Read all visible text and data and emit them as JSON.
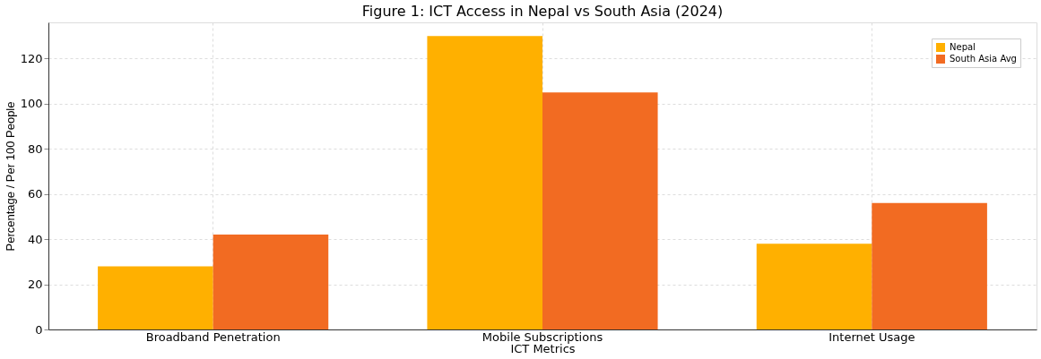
{
  "chart_data": {
    "type": "bar",
    "title": "Figure 1: ICT Access in Nepal vs South Asia (2024)",
    "xlabel": "ICT Metrics",
    "ylabel": "Percentage / Per 100 People",
    "categories": [
      "Broadband Penetration",
      "Mobile Subscriptions",
      "Internet Usage"
    ],
    "series": [
      {
        "name": "Nepal",
        "color": "#ffb000",
        "values": [
          28,
          130,
          38
        ]
      },
      {
        "name": "South Asia Avg",
        "color": "#f26b22",
        "values": [
          42,
          105,
          56
        ]
      }
    ],
    "ylim": [
      0,
      136
    ],
    "yticks": [
      0,
      20,
      40,
      60,
      80,
      100,
      120
    ],
    "grid": true,
    "legend": "top right"
  }
}
